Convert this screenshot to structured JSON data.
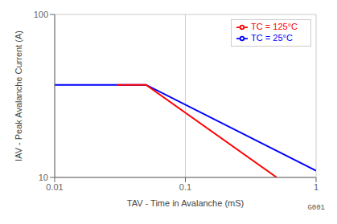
{
  "chart_data": {
    "type": "line",
    "title": "",
    "xlabel": "TAV - Time in Avalanche (mS)",
    "ylabel": "IAV - Peak Avalanche Current (A)",
    "annotation": "G001",
    "log": true,
    "grid": true,
    "legend": "upper right",
    "xlim": [
      0.01,
      1.0
    ],
    "ylim": [
      10,
      100
    ],
    "xticks": [
      0.01,
      0.1,
      1
    ],
    "yticks": [
      10,
      100
    ],
    "series": [
      {
        "name": "TC = 25°C",
        "color": "#0000FF",
        "x": [
          0.01,
          0.05,
          1.0
        ],
        "values": [
          37,
          37,
          11
        ]
      },
      {
        "name": "TC = 125°C",
        "color": "#FF0000",
        "x": [
          0.03,
          0.05,
          0.5
        ],
        "values": [
          37,
          37,
          10
        ]
      }
    ]
  }
}
